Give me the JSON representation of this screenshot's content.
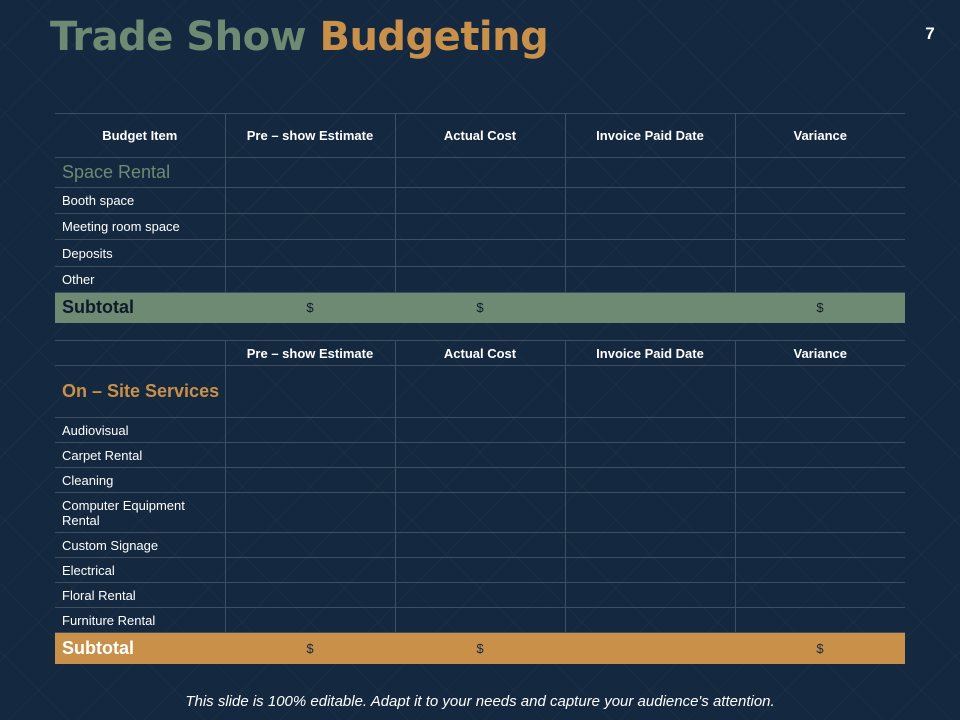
{
  "slide": {
    "title_part1": "Trade Show ",
    "title_part2": "Budgeting",
    "page_number": "7",
    "footer": "This slide is 100% editable. Adapt it to your needs and capture your audience's attention."
  },
  "colors": {
    "background": "#14283f",
    "accent_green": "#6f8a73",
    "accent_gold": "#c9904a"
  },
  "table1": {
    "headers": [
      "Budget Item",
      "Pre – show Estimate",
      "Actual Cost",
      "Invoice Paid Date",
      "Variance"
    ],
    "section": "Space Rental",
    "items": [
      "Booth space",
      "Meeting room space",
      "Deposits",
      "Other"
    ],
    "subtotal": {
      "label": "Subtotal",
      "values": [
        "$",
        "$",
        "",
        "$"
      ]
    }
  },
  "table2": {
    "headers": [
      "",
      "Pre – show Estimate",
      "Actual Cost",
      "Invoice Paid Date",
      "Variance"
    ],
    "section": "On – Site Services",
    "items": [
      "Audiovisual",
      "Carpet Rental",
      "Cleaning",
      "Computer Equipment Rental",
      "Custom Signage",
      "Electrical",
      "Floral Rental",
      "Furniture Rental"
    ],
    "subtotal": {
      "label": "Subtotal",
      "values": [
        "$",
        "$",
        "",
        "$"
      ]
    }
  }
}
